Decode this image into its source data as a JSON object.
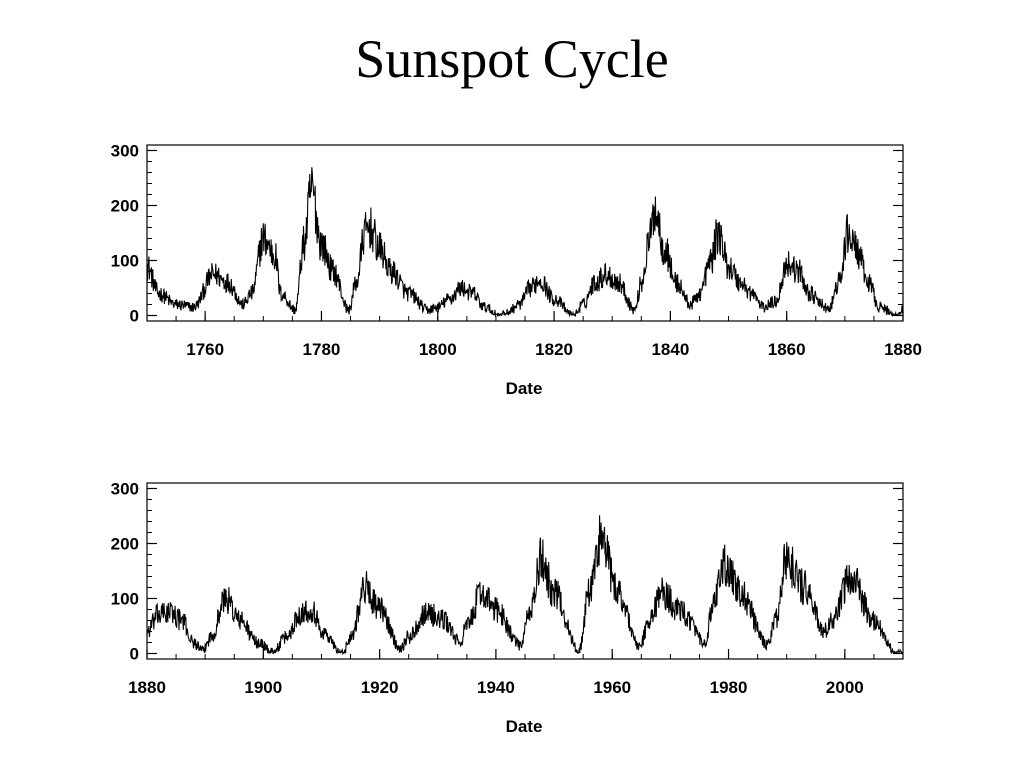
{
  "title": "Sunspot Cycle",
  "chart_data": [
    {
      "type": "line",
      "xlabel": "Date",
      "ylabel": "",
      "xlim": [
        1750,
        1880
      ],
      "ylim": [
        -10,
        310
      ],
      "xticks": [
        1760,
        1780,
        1800,
        1820,
        1840,
        1860,
        1880
      ],
      "yticks": [
        0,
        100,
        200,
        300
      ],
      "grid": false,
      "series": [
        {
          "values": {
            "x": [
              1750,
              1752,
              1755,
              1758,
              1761.5,
              1764,
              1766.5,
              1768,
              1770,
              1772,
              1773,
              1775.5,
              1777,
              1778.3,
              1780,
              1782,
              1784.7,
              1786,
              1787.5,
              1788.3,
              1790,
              1792,
              1795,
              1798.3,
              1800,
              1802,
              1804,
              1806,
              1808,
              1810.6,
              1812,
              1814,
              1816,
              1817.5,
              1820,
              1823.3,
              1825,
              1827,
              1829,
              1831,
              1833.9,
              1835,
              1836.5,
              1837.3,
              1839,
              1841,
              1843.5,
              1845,
              1847,
              1848.2,
              1850,
              1852,
              1854,
              1856,
              1858,
              1860.2,
              1862,
              1864,
              1866,
              1867.2,
              1869,
              1870.6,
              1872,
              1874,
              1876,
              1878.9,
              1880
            ],
            "y": [
              90,
              40,
              20,
              15,
              75,
              60,
              20,
              40,
              140,
              110,
              40,
              10,
              130,
              230,
              130,
              80,
              10,
              60,
              150,
              160,
              120,
              80,
              40,
              10,
              15,
              30,
              50,
              40,
              15,
              0,
              5,
              20,
              50,
              65,
              30,
              0,
              20,
              60,
              75,
              60,
              10,
              60,
              140,
              195,
              120,
              60,
              20,
              40,
              100,
              150,
              90,
              60,
              40,
              15,
              25,
              95,
              80,
              40,
              20,
              10,
              60,
              150,
              120,
              60,
              15,
              0,
              10
            ]
          }
        }
      ]
    },
    {
      "type": "line",
      "xlabel": "Date",
      "ylabel": "",
      "xlim": [
        1880,
        2010
      ],
      "ylim": [
        -10,
        310
      ],
      "xticks": [
        1880,
        1900,
        1920,
        1940,
        1960,
        1980,
        2000
      ],
      "yticks": [
        0,
        100,
        200,
        300
      ],
      "grid": false,
      "series": [
        {
          "values": {
            "x": [
              1880,
              1882,
              1884,
              1886,
              1888,
              1889.6,
              1891,
              1893.5,
              1896,
              1899,
              1901.7,
              1904,
              1906.5,
              1908.5,
              1910,
              1913.6,
              1915,
              1917.5,
              1920,
              1923.6,
              1925,
              1928,
              1931,
              1933.8,
              1935,
              1937.5,
              1940,
              1944.2,
              1946,
              1947.8,
              1950,
              1954.3,
              1956,
              1958,
              1961,
              1964.8,
              1966,
              1968.5,
              1972,
              1976.2,
              1977,
              1979.5,
              1982,
              1986.7,
              1988,
              1990,
              1993,
              1996.5,
              1998,
              2001,
              2005,
              2008.9,
              2010
            ],
            "y": [
              40,
              70,
              75,
              60,
              20,
              5,
              30,
              100,
              60,
              20,
              3,
              30,
              75,
              80,
              40,
              0,
              30,
              120,
              80,
              10,
              30,
              75,
              60,
              20,
              50,
              110,
              80,
              15,
              80,
              170,
              110,
              5,
              110,
              210,
              110,
              10,
              50,
              110,
              75,
              15,
              80,
              160,
              110,
              15,
              60,
              170,
              120,
              40,
              60,
              140,
              60,
              0,
              0
            ]
          }
        }
      ]
    }
  ]
}
